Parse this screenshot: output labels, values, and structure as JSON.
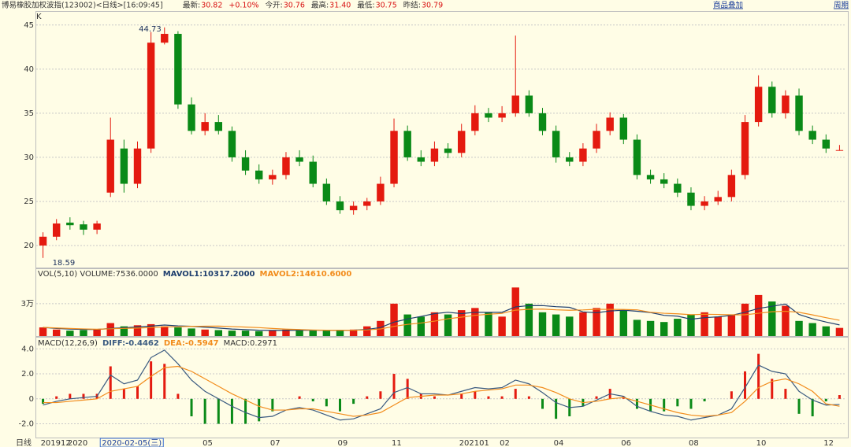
{
  "header": {
    "title": "博易橡胶加权波指(123002)<日线>[16:09:45]",
    "quotes": [
      {
        "label": "最新:",
        "value": "30.82"
      },
      {
        "label": "",
        "value": "+0.10%"
      },
      {
        "label": "今开:",
        "value": "30.76"
      },
      {
        "label": "最高:",
        "value": "31.40"
      },
      {
        "label": "最低:",
        "value": "30.75"
      },
      {
        "label": "昨结:",
        "value": "30.79"
      }
    ],
    "links": [
      "商品叠加",
      "周期"
    ]
  },
  "chart_data": {
    "type": "candlestick",
    "y_axis_label": "K",
    "x_axis_label": "日线",
    "cursor_label": "2020-02-05(三)",
    "up_color": "#e41a0f",
    "down_color": "#0a8a17",
    "grid": true,
    "categories": [
      "201912",
      null,
      "2020",
      null,
      null,
      null,
      null,
      null,
      null,
      null,
      null,
      null,
      "05",
      null,
      null,
      null,
      null,
      "07",
      null,
      null,
      null,
      null,
      "09",
      null,
      null,
      null,
      "11",
      null,
      null,
      null,
      null,
      "202101",
      null,
      null,
      "02",
      null,
      null,
      null,
      "04",
      null,
      null,
      null,
      null,
      "06",
      null,
      null,
      null,
      null,
      "08",
      null,
      null,
      null,
      null,
      "10",
      null,
      null,
      null,
      null,
      "12",
      null
    ],
    "open": [
      20,
      21,
      22.6,
      22.4,
      21.8,
      26,
      31,
      27,
      31,
      43,
      44,
      36,
      33,
      34,
      33,
      30,
      28.5,
      27.5,
      28,
      30,
      29.5,
      27,
      25,
      24,
      24.5,
      25,
      27,
      33,
      30,
      29.5,
      31,
      30.5,
      33,
      35,
      34.5,
      35,
      37,
      35,
      33,
      30,
      29.5,
      31,
      33,
      34.5,
      32,
      28,
      27.5,
      27,
      26,
      24.5,
      25,
      25.5,
      28,
      34,
      38,
      35,
      37,
      33,
      32,
      30.76
    ],
    "high": [
      21.5,
      23,
      23.2,
      22.8,
      22.8,
      34.5,
      32,
      31.8,
      44.2,
      44.73,
      44.3,
      36.8,
      35,
      34.8,
      33.5,
      30.8,
      29.2,
      28.6,
      30.6,
      30.8,
      30.2,
      27.6,
      25.6,
      25,
      25.4,
      27.8,
      34.4,
      33.6,
      30.8,
      31.8,
      31.6,
      33.8,
      35.9,
      35.6,
      35.8,
      43.8,
      37.6,
      35.6,
      33.6,
      30.6,
      31.6,
      33.8,
      35.1,
      34.9,
      32.6,
      28.6,
      28.2,
      27.6,
      26.6,
      25.6,
      26.2,
      28.6,
      34.8,
      39.3,
      38.6,
      37.6,
      37.8,
      33.6,
      32.6,
      31.4
    ],
    "low": [
      18.59,
      20.6,
      21.8,
      21.2,
      21.3,
      25.5,
      26,
      26.5,
      30.5,
      42.8,
      35.5,
      32.6,
      32.5,
      32.6,
      29.5,
      28,
      27,
      26.9,
      27.5,
      29,
      26.6,
      24.6,
      23.6,
      23.5,
      24,
      24.6,
      26.6,
      29.6,
      29,
      29,
      29.9,
      30,
      32.5,
      34,
      34,
      34.6,
      34.6,
      32.5,
      29.4,
      29,
      29,
      30.5,
      32.5,
      31.5,
      27.5,
      27,
      26.5,
      25.5,
      24,
      24,
      24.6,
      25,
      27.5,
      33.5,
      34.5,
      34.4,
      32.5,
      31.5,
      30.5,
      30.75
    ],
    "close": [
      21,
      22.5,
      22.3,
      21.8,
      22.5,
      32,
      27,
      31,
      43,
      44,
      36,
      33,
      34,
      33,
      30,
      28.5,
      27.5,
      28,
      30,
      29.5,
      27,
      25,
      24,
      24.5,
      25,
      27,
      33,
      30,
      29.5,
      31,
      30.5,
      33,
      35,
      34.5,
      35,
      37,
      35,
      33,
      30,
      29.5,
      31,
      33,
      34.5,
      32,
      28,
      27.5,
      27,
      26,
      24.5,
      25,
      25.5,
      28,
      34,
      38,
      35,
      37,
      33,
      32,
      31,
      30.82
    ],
    "ylim": [
      17.5,
      46.5
    ],
    "yticks": [
      20,
      25,
      30,
      35,
      40,
      45
    ],
    "volume": {
      "label": "VOL(5,10) VOLUME:7536.0000",
      "ylim": [
        0,
        62000
      ],
      "yticks": [
        {
          "value": 30000,
          "label": "3万"
        }
      ],
      "values": [
        8000,
        6000,
        5000,
        5500,
        6000,
        12000,
        9000,
        10000,
        11000,
        9000,
        8000,
        7000,
        6000,
        5500,
        5000,
        5000,
        4500,
        5000,
        6000,
        5500,
        5000,
        5000,
        5500,
        6000,
        9000,
        14000,
        30000,
        20000,
        18000,
        22000,
        20000,
        24000,
        26000,
        22000,
        18000,
        45000,
        30000,
        22000,
        20000,
        18000,
        22000,
        26000,
        30000,
        24000,
        15000,
        14000,
        13000,
        16000,
        20000,
        22000,
        18000,
        20000,
        30000,
        38000,
        32000,
        28000,
        14000,
        12000,
        9000,
        7536
      ],
      "series": [
        {
          "name": "MAVOL1:10317.2000",
          "color": "#1f3f6e",
          "values": [
            8000,
            7000,
            6500,
            6100,
            6100,
            7000,
            7700,
            8500,
            9200,
            10200,
            9400,
            9000,
            8200,
            7400,
            6500,
            5900,
            5400,
            5200,
            5300,
            5400,
            5400,
            5400,
            5400,
            5400,
            6100,
            7900,
            12900,
            15800,
            18200,
            20800,
            22000,
            20800,
            22000,
            22000,
            22000,
            27000,
            28200,
            28200,
            27200,
            26600,
            22400,
            21600,
            23200,
            24000,
            23000,
            21800,
            19200,
            18400,
            15600,
            17000,
            17800,
            19200,
            22000,
            25600,
            27600,
            29600,
            20000,
            16000,
            13000,
            10317.2
          ]
        },
        {
          "name": "MAVOL2:14610.6000",
          "color": "#f28c1c",
          "values": [
            8000,
            7500,
            7000,
            6600,
            6300,
            6700,
            7100,
            7400,
            7900,
            8500,
            8600,
            9000,
            9100,
            9200,
            8800,
            8300,
            7800,
            7000,
            6400,
            6000,
            5600,
            5400,
            5300,
            5400,
            5700,
            6500,
            9000,
            10800,
            12100,
            13800,
            16000,
            17500,
            19200,
            20200,
            21000,
            24000,
            24800,
            25000,
            24300,
            23900,
            24200,
            24800,
            24700,
            24600,
            24300,
            22000,
            21100,
            20600,
            19800,
            20200,
            20000,
            19700,
            19700,
            21100,
            22500,
            23000,
            22000,
            19600,
            17000,
            14610.6
          ]
        }
      ]
    },
    "macd": {
      "label": "MACD(12,26,9)",
      "ylim": [
        -3.1,
        4.9
      ],
      "yticks": [
        {
          "value": 4,
          "label": "4.0"
        },
        {
          "value": 2,
          "label": "2.0"
        },
        0,
        {
          "value": -2,
          "label": "-2.0"
        }
      ],
      "series": [
        {
          "name": "DIFF:-0.4462",
          "color": "#3a5a80",
          "values": [
            -0.5,
            -0.2,
            0,
            0.1,
            0.2,
            1.9,
            1.2,
            1.5,
            3.3,
            3.9,
            2.8,
            1.5,
            0.6,
            0,
            -0.6,
            -1.1,
            -1.5,
            -1.4,
            -0.9,
            -0.7,
            -0.9,
            -1.3,
            -1.7,
            -1.6,
            -1.2,
            -0.8,
            0.5,
            0.9,
            0.4,
            0.4,
            0.3,
            0.6,
            0.9,
            0.8,
            0.9,
            1.5,
            1.2,
            0.5,
            -0.3,
            -0.7,
            -0.6,
            -0.1,
            0.4,
            0.2,
            -0.6,
            -1,
            -1.3,
            -1.4,
            -1.7,
            -1.5,
            -1.3,
            -0.8,
            0.9,
            2.7,
            2.2,
            2,
            0.6,
            -0.1,
            -0.5,
            -0.45
          ]
        },
        {
          "name": "DEA:-0.5947",
          "color": "#f28c1c",
          "values": [
            -0.3,
            -0.3,
            -0.2,
            -0.1,
            0,
            0.6,
            0.8,
            1,
            1.8,
            2.5,
            2.6,
            2.2,
            1.6,
            1,
            0.4,
            -0.1,
            -0.6,
            -0.9,
            -0.9,
            -0.8,
            -0.8,
            -1,
            -1.2,
            -1.4,
            -1.3,
            -1.1,
            -0.5,
            0.1,
            0.2,
            0.3,
            0.3,
            0.4,
            0.6,
            0.7,
            0.8,
            1.1,
            1.1,
            0.9,
            0.5,
            0,
            -0.3,
            -0.2,
            0,
            0.1,
            -0.2,
            -0.5,
            -0.8,
            -1.1,
            -1.3,
            -1.4,
            -1.3,
            -1.1,
            -0.2,
            0.9,
            1.4,
            1.6,
            1.2,
            0.6,
            -0.4,
            -0.59
          ]
        }
      ],
      "histogram": {
        "name": "MACD:0.2971",
        "values": [
          -0.4,
          0.2,
          0.4,
          0.4,
          0.4,
          2.6,
          0.8,
          1,
          3,
          2.8,
          0.4,
          -1.4,
          -2,
          -2,
          -2,
          -2,
          -1.8,
          -1,
          0,
          0.2,
          -0.2,
          -0.6,
          -1,
          -0.4,
          0.2,
          0.6,
          2,
          1.6,
          0.4,
          0.2,
          0,
          0.4,
          0.6,
          0.2,
          0.2,
          0.8,
          0.2,
          -0.8,
          -1.6,
          -1.4,
          -0.6,
          0.2,
          0.8,
          0.2,
          -0.8,
          -1,
          -1,
          -0.6,
          -0.8,
          -0.2,
          0,
          0.6,
          2.2,
          3.6,
          1.6,
          0.8,
          -1.2,
          -1.4,
          -0.2,
          0.3
        ]
      }
    }
  }
}
